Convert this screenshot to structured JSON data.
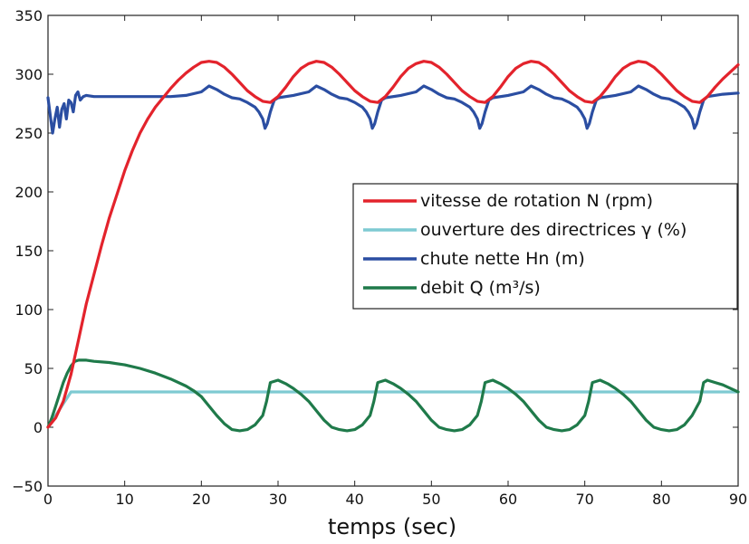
{
  "chart_data": {
    "type": "line",
    "title": "",
    "xlabel": "temps (sec)",
    "ylabel": "",
    "xlim": [
      0,
      90
    ],
    "ylim": [
      -50,
      350
    ],
    "xticks": [
      0,
      10,
      20,
      30,
      40,
      50,
      60,
      70,
      80,
      90
    ],
    "yticks": [
      -50,
      0,
      50,
      100,
      150,
      200,
      250,
      300,
      350
    ],
    "grid": false,
    "legend_position": "center-right",
    "series": [
      {
        "name": "vitesse de rotation N (rpm)",
        "color": "#e3232c",
        "x": [
          0,
          1,
          2,
          3,
          4,
          5,
          6,
          7,
          8,
          9,
          10,
          11,
          12,
          13,
          14,
          15,
          16,
          17,
          18,
          19,
          20,
          21,
          22,
          23,
          24,
          25,
          26,
          27,
          28,
          29,
          30,
          31,
          32,
          33,
          34,
          35,
          36,
          37,
          38,
          39,
          40,
          41,
          42,
          43,
          44,
          45,
          46,
          47,
          48,
          49,
          50,
          51,
          52,
          53,
          54,
          55,
          56,
          57,
          58,
          59,
          60,
          61,
          62,
          63,
          64,
          65,
          66,
          67,
          68,
          69,
          70,
          71,
          72,
          73,
          74,
          75,
          76,
          77,
          78,
          79,
          80,
          81,
          82,
          83,
          84,
          85,
          86,
          87,
          88,
          89,
          90
        ],
        "y": [
          0,
          8,
          22,
          45,
          75,
          105,
          130,
          155,
          178,
          198,
          218,
          235,
          250,
          262,
          272,
          280,
          288,
          295,
          301,
          306,
          310,
          311,
          310,
          306,
          300,
          293,
          286,
          281,
          277,
          276,
          281,
          289,
          298,
          305,
          309,
          311,
          310,
          306,
          300,
          293,
          286,
          281,
          277,
          276,
          281,
          289,
          298,
          305,
          309,
          311,
          310,
          306,
          300,
          293,
          286,
          281,
          277,
          276,
          281,
          289,
          298,
          305,
          309,
          311,
          310,
          306,
          300,
          293,
          286,
          281,
          277,
          276,
          281,
          289,
          298,
          305,
          309,
          311,
          310,
          306,
          300,
          293,
          286,
          281,
          277,
          276,
          281,
          289,
          296,
          302,
          308
        ]
      },
      {
        "name": "ouverture des directrices γ (%)",
        "color": "#7ecad2",
        "x": [
          0,
          0.5,
          1,
          1.5,
          2,
          2.5,
          3,
          90
        ],
        "y": [
          0,
          5,
          10,
          15,
          20,
          25,
          30,
          30
        ]
      },
      {
        "name": "chute nette Hn (m)",
        "color": "#2b4ea2",
        "x": [
          0,
          0.3,
          0.6,
          0.9,
          1.2,
          1.5,
          1.8,
          2.1,
          2.4,
          2.7,
          3.0,
          3.3,
          3.6,
          3.9,
          4.2,
          4.6,
          5,
          6,
          8,
          10,
          12,
          14,
          16,
          18,
          20,
          21,
          22,
          23,
          24,
          25,
          26,
          27,
          27.5,
          28,
          28.3,
          28.6,
          29,
          29.5,
          30,
          32,
          34,
          35,
          36,
          37,
          38,
          39,
          40,
          41,
          41.5,
          42,
          42.3,
          42.6,
          43,
          43.5,
          44,
          46,
          48,
          49,
          50,
          51,
          52,
          53,
          54,
          55,
          55.5,
          56,
          56.3,
          56.6,
          57,
          57.5,
          58,
          60,
          62,
          63,
          64,
          65,
          66,
          67,
          68,
          69,
          69.5,
          70,
          70.3,
          70.6,
          71,
          71.5,
          72,
          74,
          76,
          77,
          78,
          79,
          80,
          81,
          82,
          83,
          83.5,
          84,
          84.3,
          84.6,
          85,
          85.5,
          86,
          88,
          90
        ],
        "y": [
          280,
          265,
          250,
          262,
          272,
          255,
          270,
          275,
          262,
          278,
          276,
          268,
          282,
          285,
          278,
          281,
          282,
          281,
          281,
          281,
          281,
          281,
          281,
          282,
          285,
          290,
          287,
          283,
          280,
          279,
          276,
          272,
          268,
          262,
          254,
          258,
          268,
          278,
          280,
          282,
          285,
          290,
          287,
          283,
          280,
          279,
          276,
          272,
          268,
          262,
          254,
          258,
          268,
          278,
          280,
          282,
          285,
          290,
          287,
          283,
          280,
          279,
          276,
          272,
          268,
          262,
          254,
          258,
          268,
          278,
          280,
          282,
          285,
          290,
          287,
          283,
          280,
          279,
          276,
          272,
          268,
          262,
          254,
          258,
          268,
          278,
          280,
          282,
          285,
          290,
          287,
          283,
          280,
          279,
          276,
          272,
          268,
          262,
          254,
          258,
          268,
          278,
          281,
          283,
          284
        ]
      },
      {
        "name": "debit Q (m³/s)",
        "color": "#1f7a4a",
        "x": [
          0,
          0.5,
          1,
          1.5,
          2,
          2.5,
          3,
          3.5,
          4,
          5,
          6,
          8,
          10,
          12,
          14,
          16,
          18,
          19,
          20,
          21,
          22,
          23,
          24,
          25,
          26,
          27,
          28,
          28.5,
          29,
          30,
          31,
          32,
          33,
          34,
          35,
          36,
          37,
          38,
          39,
          40,
          41,
          42,
          42.5,
          43,
          44,
          45,
          46,
          47,
          48,
          49,
          50,
          51,
          52,
          53,
          54,
          55,
          56,
          56.5,
          57,
          58,
          59,
          60,
          61,
          62,
          63,
          64,
          65,
          66,
          67,
          68,
          69,
          70,
          70.5,
          71,
          72,
          73,
          74,
          75,
          76,
          77,
          78,
          79,
          80,
          81,
          82,
          83,
          84,
          85,
          85.5,
          86,
          87,
          88,
          89,
          90
        ],
        "y": [
          0,
          8,
          18,
          28,
          38,
          46,
          52,
          56,
          57,
          57,
          56,
          55,
          53,
          50,
          46,
          41,
          35,
          31,
          26,
          18,
          10,
          3,
          -2,
          -3,
          -2,
          2,
          10,
          22,
          38,
          40,
          37,
          33,
          28,
          22,
          14,
          6,
          0,
          -2,
          -3,
          -2,
          2,
          10,
          22,
          38,
          40,
          37,
          33,
          28,
          22,
          14,
          6,
          0,
          -2,
          -3,
          -2,
          2,
          10,
          22,
          38,
          40,
          37,
          33,
          28,
          22,
          14,
          6,
          0,
          -2,
          -3,
          -2,
          2,
          10,
          22,
          38,
          40,
          37,
          33,
          28,
          22,
          14,
          6,
          0,
          -2,
          -3,
          -2,
          2,
          10,
          22,
          38,
          40,
          38,
          36,
          33,
          30
        ]
      }
    ]
  }
}
